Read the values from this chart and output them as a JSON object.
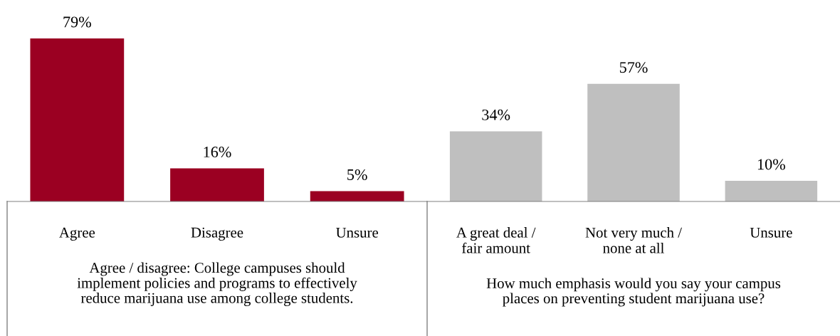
{
  "chart_data": [
    {
      "type": "bar",
      "categories": [
        "Agree",
        "Disagree",
        "Unsure"
      ],
      "values": [
        79,
        16,
        5
      ],
      "colors": [
        "#9b0022",
        "#9b0022",
        "#9b0022"
      ],
      "value_labels": [
        "79%",
        "16%",
        "5%"
      ],
      "xlabel": "Agree / disagree: College campuses should\nimplement policies and programs to effectively\nreduce marijuana use among college students."
    },
    {
      "type": "bar",
      "categories": [
        "A great deal /\nfair amount",
        "Not very much /\nnone at all",
        "Unsure"
      ],
      "values": [
        34,
        57,
        10
      ],
      "colors": [
        "#bfbfbf",
        "#bfbfbf",
        "#bfbfbf"
      ],
      "value_labels": [
        "34%",
        "57%",
        "10%"
      ],
      "xlabel": "How much emphasis would you say your campus\nplaces on preventing student marijuana use?"
    }
  ]
}
